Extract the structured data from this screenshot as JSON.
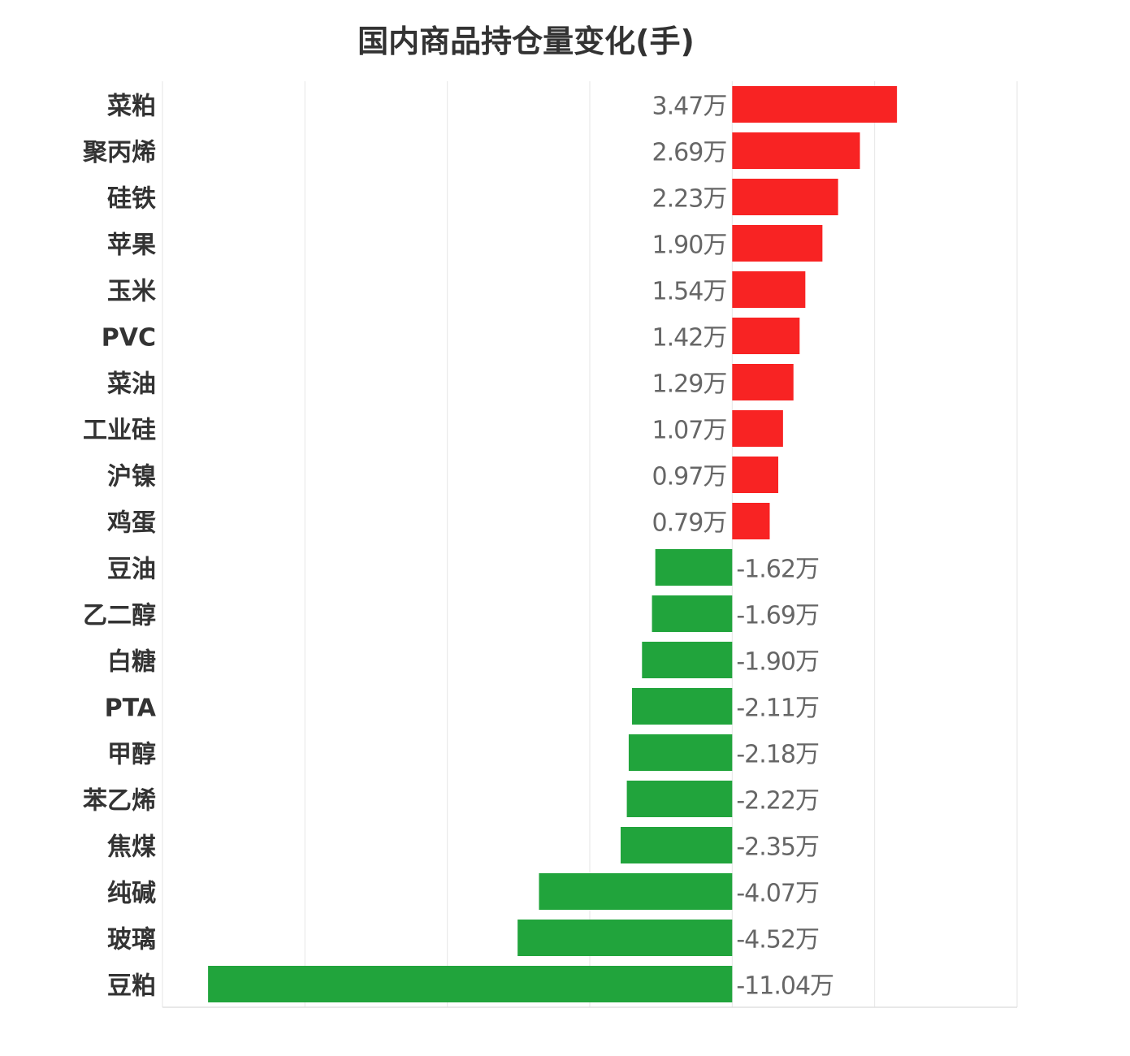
{
  "chart_data": {
    "type": "bar",
    "orientation": "horizontal",
    "title": "国内商品持仓量变化(手)",
    "xlabel": "",
    "ylabel": "",
    "unit_suffix": "万",
    "xlim": [
      -12,
      6
    ],
    "x_grid_step": 3,
    "grid": true,
    "categories": [
      "菜粕",
      "聚丙烯",
      "硅铁",
      "苹果",
      "玉米",
      "PVC",
      "菜油",
      "工业硅",
      "沪镍",
      "鸡蛋",
      "豆油",
      "乙二醇",
      "白糖",
      "PTA",
      "甲醇",
      "苯乙烯",
      "焦煤",
      "纯碱",
      "玻璃",
      "豆粕"
    ],
    "values": [
      3.47,
      2.69,
      2.23,
      1.9,
      1.54,
      1.42,
      1.29,
      1.07,
      0.97,
      0.79,
      -1.62,
      -1.69,
      -1.9,
      -2.11,
      -2.18,
      -2.22,
      -2.35,
      -4.07,
      -4.52,
      -11.04
    ],
    "data_labels": [
      "3.47万",
      "2.69万",
      "2.23万",
      "1.90万",
      "1.54万",
      "1.42万",
      "1.29万",
      "1.07万",
      "0.97万",
      "0.79万",
      "-1.62万",
      "-1.69万",
      "-1.90万",
      "-2.11万",
      "-2.18万",
      "-2.22万",
      "-2.35万",
      "-4.07万",
      "-4.52万",
      "-11.04万"
    ],
    "colors": {
      "positive": "#f82323",
      "negative": "#21a43c"
    }
  }
}
